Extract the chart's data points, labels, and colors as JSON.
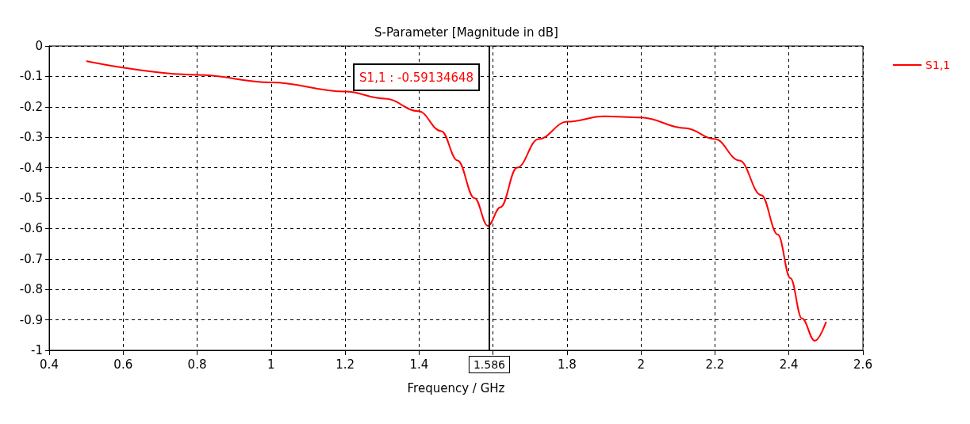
{
  "chart_data": {
    "type": "line",
    "title": "S-Parameter [Magnitude in dB]",
    "xlabel": "Frequency / GHz",
    "series": [
      {
        "name": "S1,1",
        "color": "#ff0000",
        "x": [
          0.502,
          0.8,
          1.0,
          1.2,
          1.308,
          1.398,
          1.46,
          1.504,
          1.55,
          1.586,
          1.62,
          1.665,
          1.723,
          1.8,
          1.9,
          2.0,
          2.12,
          2.2,
          2.266,
          2.325,
          2.37,
          2.404,
          2.435,
          2.47,
          2.5
        ],
        "values": [
          -0.05,
          -0.095,
          -0.12,
          -0.15,
          -0.173,
          -0.214,
          -0.28,
          -0.376,
          -0.5,
          -0.591,
          -0.53,
          -0.4,
          -0.306,
          -0.249,
          -0.231,
          -0.235,
          -0.27,
          -0.306,
          -0.376,
          -0.49,
          -0.62,
          -0.763,
          -0.895,
          -0.969,
          -0.908
        ]
      }
    ],
    "xlim": [
      0.4,
      2.6
    ],
    "xticks": [
      0.4,
      0.6,
      0.8,
      1,
      1.2,
      1.4,
      {
        "value": 1.6,
        "label": null
      },
      1.8,
      2,
      2.2,
      2.4,
      2.6
    ],
    "ylim": [
      -1,
      0
    ],
    "yticks": [
      0,
      -0.1,
      -0.2,
      -0.3,
      -0.4,
      -0.5,
      -0.6,
      -0.7,
      -0.8,
      -0.9,
      -1
    ],
    "ref_lines": [
      {
        "axis": "x",
        "value": 1.586,
        "label": "1.586",
        "color": "#000000"
      }
    ],
    "annotations": [
      "S1,1 : -0.59134648"
    ],
    "grid": true,
    "legend": "top right",
    "line_style": "solid",
    "marker": "none"
  }
}
